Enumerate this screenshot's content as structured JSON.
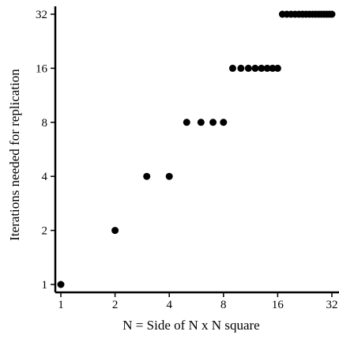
{
  "chart_data": {
    "type": "scatter",
    "xlabel": "N = Side of N x N square",
    "ylabel": "Iterations needed for replication",
    "x_scale": "log2",
    "y_scale": "log2",
    "xlim": [
      1,
      32
    ],
    "ylim": [
      1,
      32
    ],
    "x_ticks": [
      1,
      2,
      4,
      8,
      16,
      32
    ],
    "y_ticks": [
      1,
      2,
      4,
      8,
      16,
      32
    ],
    "x_tick_labels": [
      "1",
      "2",
      "4",
      "8",
      "16",
      "32"
    ],
    "y_tick_labels": [
      "1",
      "2",
      "4",
      "8",
      "16",
      "32"
    ],
    "grid": false,
    "marker_color": "#000000",
    "points": [
      {
        "x": 1,
        "y": 1
      },
      {
        "x": 2,
        "y": 2
      },
      {
        "x": 3,
        "y": 4
      },
      {
        "x": 4,
        "y": 4
      },
      {
        "x": 5,
        "y": 8
      },
      {
        "x": 6,
        "y": 8
      },
      {
        "x": 7,
        "y": 8
      },
      {
        "x": 8,
        "y": 8
      },
      {
        "x": 9,
        "y": 16
      },
      {
        "x": 10,
        "y": 16
      },
      {
        "x": 11,
        "y": 16
      },
      {
        "x": 12,
        "y": 16
      },
      {
        "x": 13,
        "y": 16
      },
      {
        "x": 14,
        "y": 16
      },
      {
        "x": 15,
        "y": 16
      },
      {
        "x": 16,
        "y": 16
      },
      {
        "x": 17,
        "y": 32
      },
      {
        "x": 18,
        "y": 32
      },
      {
        "x": 19,
        "y": 32
      },
      {
        "x": 20,
        "y": 32
      },
      {
        "x": 21,
        "y": 32
      },
      {
        "x": 22,
        "y": 32
      },
      {
        "x": 23,
        "y": 32
      },
      {
        "x": 24,
        "y": 32
      },
      {
        "x": 25,
        "y": 32
      },
      {
        "x": 26,
        "y": 32
      },
      {
        "x": 27,
        "y": 32
      },
      {
        "x": 28,
        "y": 32
      },
      {
        "x": 29,
        "y": 32
      },
      {
        "x": 30,
        "y": 32
      },
      {
        "x": 31,
        "y": 32
      },
      {
        "x": 32,
        "y": 32
      }
    ]
  }
}
